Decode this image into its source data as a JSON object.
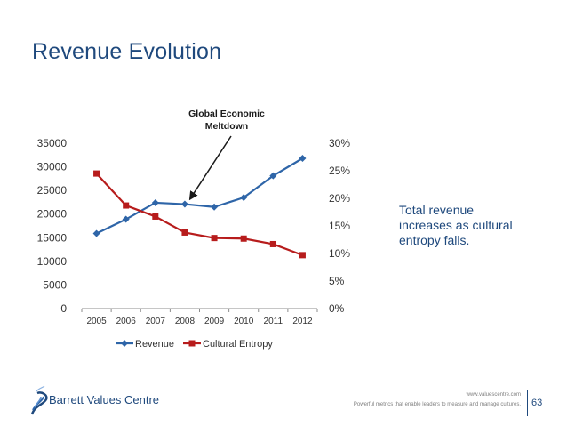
{
  "slide": {
    "title": "Revenue Evolution",
    "side_note_lines": [
      "Total revenue",
      "increases as cultural",
      "entropy falls."
    ],
    "footer_url": "www.valuescentre.com",
    "footer_tagline": "Powerful metrics that enable leaders to measure and manage cultures.",
    "page_number": "63",
    "logo_text": "Barrett Values Centre"
  },
  "colors": {
    "title": "#1f497d",
    "revenue": "#2e65a8",
    "entropy": "#b71c1c",
    "axis": "#8c8c8c",
    "text": "#333333"
  },
  "chart_data": {
    "type": "line",
    "categories": [
      "2005",
      "2006",
      "2007",
      "2008",
      "2009",
      "2010",
      "2011",
      "2012"
    ],
    "series": [
      {
        "name": "Revenue",
        "axis": "left",
        "marker": "diamond",
        "values": [
          15900,
          18900,
          22400,
          22100,
          21500,
          23500,
          28100,
          31800
        ]
      },
      {
        "name": "Cultural Entropy",
        "axis": "right",
        "marker": "square",
        "values": [
          0.245,
          0.187,
          0.167,
          0.138,
          0.128,
          0.127,
          0.117,
          0.097
        ]
      }
    ],
    "y_left": {
      "min": 0,
      "max": 35000,
      "ticks": [
        "0",
        "5000",
        "10000",
        "15000",
        "20000",
        "25000",
        "30000",
        "35000"
      ],
      "tick_values": [
        0,
        5000,
        10000,
        15000,
        20000,
        25000,
        30000,
        35000
      ]
    },
    "y_right": {
      "min": 0,
      "max": 0.3,
      "ticks": [
        "0%",
        "5%",
        "10%",
        "15%",
        "20%",
        "25%",
        "30%"
      ],
      "tick_values": [
        0,
        0.05,
        0.1,
        0.15,
        0.2,
        0.25,
        0.3
      ]
    },
    "annotation": {
      "lines": [
        "Global Economic",
        "Meltdown"
      ],
      "points_to": "2008"
    },
    "legend": {
      "position": "bottom",
      "entries": [
        "Revenue",
        "Cultural Entropy"
      ]
    },
    "grid": false
  }
}
